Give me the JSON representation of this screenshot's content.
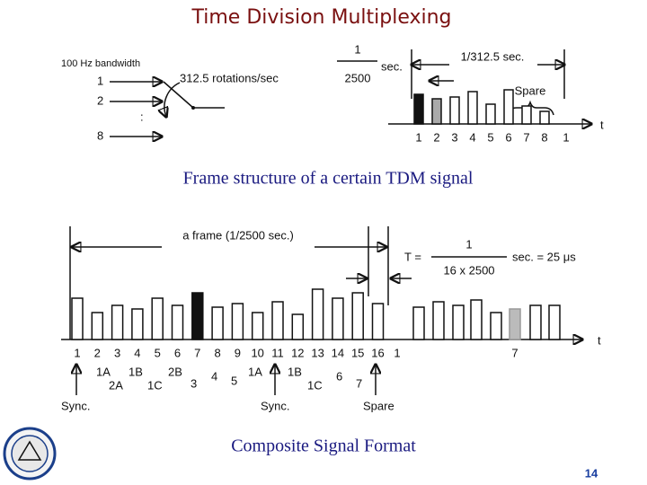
{
  "title": "Time Division Multiplexing",
  "top_diagram": {
    "inputs_label": "100 Hz bandwidth",
    "inputs": [
      "1",
      "2",
      ":",
      "8"
    ],
    "rotation_label": "312.5 rotations/sec",
    "slot_fraction": {
      "numerator": "1",
      "denominator": "2500",
      "unit": "sec."
    },
    "frame_label": "1/312.5 sec.",
    "spare_label": "Spare",
    "slot_numbers": [
      "1",
      "2",
      "3",
      "4",
      "5",
      "6",
      "7",
      "8",
      "1"
    ],
    "axis_label": "t"
  },
  "caption_top": "Frame structure of a certain TDM signal",
  "bottom_diagram": {
    "frame_label": "a frame (1/2500 sec.)",
    "slot_formula": {
      "lhs": "T =",
      "numerator": "1",
      "denominator": "16 x 2500",
      "rhs": "sec. = 25 μs"
    },
    "slot_numbers": [
      "1",
      "2",
      "3",
      "4",
      "5",
      "6",
      "7",
      "8",
      "9",
      "10",
      "11",
      "12",
      "13",
      "14",
      "15",
      "16",
      "1"
    ],
    "far_slot": "7",
    "channel_labels": [
      "1A",
      "1B",
      "2A",
      "1C",
      "2B",
      "3",
      "4",
      "5",
      "1A",
      "1B",
      "1C",
      "6",
      "7"
    ],
    "markers": [
      "Sync.",
      "Sync.",
      "Spare"
    ],
    "axis_label": "t"
  },
  "caption_bottom": "Composite Signal Format",
  "page_number": "14"
}
